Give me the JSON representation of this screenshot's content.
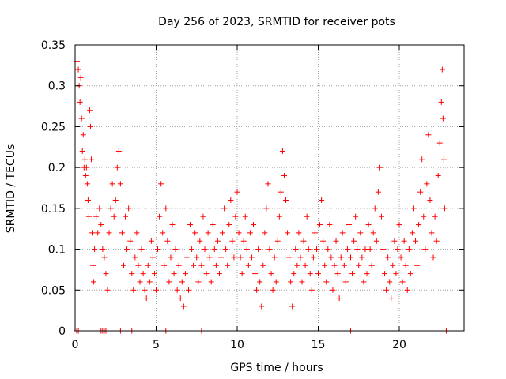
{
  "chart_data": {
    "type": "scatter",
    "title": "Day 256 of 2023, SRMTID for receiver pots",
    "xlabel": "GPS time / hours",
    "ylabel": "SRMTID / TECUs",
    "xlim": [
      0,
      24
    ],
    "ylim": [
      0,
      0.35
    ],
    "xticks": [
      "0",
      "5",
      "10",
      "15",
      "20"
    ],
    "xtick_values": [
      0,
      5,
      10,
      15,
      20
    ],
    "yticks": [
      "0",
      "0.05",
      "0.1",
      "0.15",
      "0.2",
      "0.25",
      "0.3",
      "0.35"
    ],
    "ytick_values": [
      0,
      0.05,
      0.1,
      0.15,
      0.2,
      0.25,
      0.3,
      0.35
    ],
    "grid": true,
    "marker": "+",
    "color": "#ff0000",
    "series": [
      {
        "values": [
          [
            0.12,
            0.33
          ],
          [
            0.2,
            0.32
          ],
          [
            0.25,
            0.3
          ],
          [
            0.3,
            0.28
          ],
          [
            0.35,
            0.31
          ],
          [
            0.4,
            0.26
          ],
          [
            0.45,
            0.22
          ],
          [
            0.5,
            0.24
          ],
          [
            0.55,
            0.2
          ],
          [
            0.6,
            0.21
          ],
          [
            0.65,
            0.19
          ],
          [
            0.7,
            0.2
          ],
          [
            0.75,
            0.18
          ],
          [
            0.8,
            0.16
          ],
          [
            0.85,
            0.14
          ],
          [
            0.9,
            0.27
          ],
          [
            0.95,
            0.25
          ],
          [
            1.0,
            0.21
          ],
          [
            1.05,
            0.12
          ],
          [
            1.1,
            0.08
          ],
          [
            1.15,
            0.06
          ],
          [
            1.2,
            0.1
          ],
          [
            1.3,
            0.14
          ],
          [
            1.4,
            0.12
          ],
          [
            1.5,
            0.15
          ],
          [
            1.6,
            0.13
          ],
          [
            1.7,
            0.1
          ],
          [
            1.8,
            0.09
          ],
          [
            1.9,
            0.07
          ],
          [
            2.0,
            0.05
          ],
          [
            2.1,
            0.12
          ],
          [
            2.2,
            0.15
          ],
          [
            2.3,
            0.18
          ],
          [
            2.4,
            0.14
          ],
          [
            2.5,
            0.16
          ],
          [
            2.6,
            0.2
          ],
          [
            2.7,
            0.22
          ],
          [
            2.8,
            0.18
          ],
          [
            2.9,
            0.12
          ],
          [
            3.0,
            0.08
          ],
          [
            3.1,
            0.14
          ],
          [
            3.2,
            0.1
          ],
          [
            3.3,
            0.15
          ],
          [
            3.4,
            0.11
          ],
          [
            3.5,
            0.07
          ],
          [
            3.6,
            0.05
          ],
          [
            3.7,
            0.09
          ],
          [
            3.8,
            0.12
          ],
          [
            3.9,
            0.08
          ],
          [
            4.0,
            0.06
          ],
          [
            4.1,
            0.1
          ],
          [
            4.2,
            0.07
          ],
          [
            4.3,
            0.05
          ],
          [
            4.4,
            0.04
          ],
          [
            4.5,
            0.08
          ],
          [
            4.6,
            0.06
          ],
          [
            4.7,
            0.11
          ],
          [
            4.8,
            0.09
          ],
          [
            4.9,
            0.07
          ],
          [
            5.0,
            0.05
          ],
          [
            5.1,
            0.1
          ],
          [
            5.2,
            0.14
          ],
          [
            5.3,
            0.18
          ],
          [
            5.4,
            0.12
          ],
          [
            5.5,
            0.08
          ],
          [
            5.6,
            0.15
          ],
          [
            5.7,
            0.11
          ],
          [
            5.8,
            0.06
          ],
          [
            5.9,
            0.09
          ],
          [
            6.0,
            0.13
          ],
          [
            6.1,
            0.07
          ],
          [
            6.2,
            0.1
          ],
          [
            6.3,
            0.05
          ],
          [
            6.4,
            0.08
          ],
          [
            6.5,
            0.04
          ],
          [
            6.6,
            0.06
          ],
          [
            6.7,
            0.03
          ],
          [
            6.8,
            0.07
          ],
          [
            6.9,
            0.09
          ],
          [
            7.0,
            0.05
          ],
          [
            7.1,
            0.13
          ],
          [
            7.2,
            0.1
          ],
          [
            7.3,
            0.08
          ],
          [
            7.4,
            0.12
          ],
          [
            7.5,
            0.09
          ],
          [
            7.6,
            0.06
          ],
          [
            7.7,
            0.11
          ],
          [
            7.8,
            0.08
          ],
          [
            7.9,
            0.14
          ],
          [
            8.0,
            0.1
          ],
          [
            8.1,
            0.07
          ],
          [
            8.2,
            0.12
          ],
          [
            8.3,
            0.09
          ],
          [
            8.4,
            0.06
          ],
          [
            8.5,
            0.13
          ],
          [
            8.6,
            0.1
          ],
          [
            8.7,
            0.08
          ],
          [
            8.8,
            0.11
          ],
          [
            8.9,
            0.07
          ],
          [
            9.0,
            0.09
          ],
          [
            9.1,
            0.12
          ],
          [
            9.2,
            0.15
          ],
          [
            9.3,
            0.1
          ],
          [
            9.4,
            0.08
          ],
          [
            9.5,
            0.13
          ],
          [
            9.6,
            0.16
          ],
          [
            9.7,
            0.11
          ],
          [
            9.8,
            0.09
          ],
          [
            9.9,
            0.14
          ],
          [
            10.0,
            0.17
          ],
          [
            10.1,
            0.12
          ],
          [
            10.2,
            0.09
          ],
          [
            10.3,
            0.07
          ],
          [
            10.4,
            0.11
          ],
          [
            10.5,
            0.14
          ],
          [
            10.6,
            0.1
          ],
          [
            10.7,
            0.08
          ],
          [
            10.8,
            0.12
          ],
          [
            10.9,
            0.09
          ],
          [
            11.0,
            0.13
          ],
          [
            11.1,
            0.07
          ],
          [
            11.2,
            0.05
          ],
          [
            11.3,
            0.1
          ],
          [
            11.4,
            0.06
          ],
          [
            11.5,
            0.03
          ],
          [
            11.6,
            0.08
          ],
          [
            11.7,
            0.12
          ],
          [
            11.8,
            0.15
          ],
          [
            11.9,
            0.18
          ],
          [
            12.0,
            0.1
          ],
          [
            12.1,
            0.07
          ],
          [
            12.2,
            0.05
          ],
          [
            12.3,
            0.09
          ],
          [
            12.4,
            0.06
          ],
          [
            12.5,
            0.11
          ],
          [
            12.6,
            0.14
          ],
          [
            12.7,
            0.17
          ],
          [
            12.8,
            0.22
          ],
          [
            12.9,
            0.19
          ],
          [
            13.0,
            0.16
          ],
          [
            13.1,
            0.12
          ],
          [
            13.2,
            0.09
          ],
          [
            13.3,
            0.06
          ],
          [
            13.4,
            0.03
          ],
          [
            13.5,
            0.07
          ],
          [
            13.6,
            0.1
          ],
          [
            13.7,
            0.08
          ],
          [
            13.8,
            0.12
          ],
          [
            13.9,
            0.09
          ],
          [
            14.0,
            0.06
          ],
          [
            14.1,
            0.11
          ],
          [
            14.2,
            0.08
          ],
          [
            14.3,
            0.14
          ],
          [
            14.4,
            0.1
          ],
          [
            14.5,
            0.07
          ],
          [
            14.6,
            0.05
          ],
          [
            14.7,
            0.09
          ],
          [
            14.8,
            0.12
          ],
          [
            14.9,
            0.1
          ],
          [
            15.0,
            0.07
          ],
          [
            15.1,
            0.13
          ],
          [
            15.2,
            0.16
          ],
          [
            15.3,
            0.11
          ],
          [
            15.4,
            0.08
          ],
          [
            15.5,
            0.06
          ],
          [
            15.6,
            0.1
          ],
          [
            15.7,
            0.13
          ],
          [
            15.8,
            0.09
          ],
          [
            15.9,
            0.05
          ],
          [
            16.0,
            0.08
          ],
          [
            16.1,
            0.11
          ],
          [
            16.2,
            0.07
          ],
          [
            16.3,
            0.04
          ],
          [
            16.4,
            0.09
          ],
          [
            16.5,
            0.12
          ],
          [
            16.6,
            0.08
          ],
          [
            16.7,
            0.06
          ],
          [
            16.8,
            0.1
          ],
          [
            16.9,
            0.13
          ],
          [
            17.0,
            0.09
          ],
          [
            17.1,
            0.07
          ],
          [
            17.2,
            0.11
          ],
          [
            17.3,
            0.14
          ],
          [
            17.4,
            0.1
          ],
          [
            17.5,
            0.08
          ],
          [
            17.6,
            0.12
          ],
          [
            17.7,
            0.09
          ],
          [
            17.8,
            0.06
          ],
          [
            17.9,
            0.1
          ],
          [
            18.0,
            0.07
          ],
          [
            18.1,
            0.13
          ],
          [
            18.2,
            0.1
          ],
          [
            18.3,
            0.08
          ],
          [
            18.4,
            0.12
          ],
          [
            18.5,
            0.15
          ],
          [
            18.6,
            0.11
          ],
          [
            18.7,
            0.17
          ],
          [
            18.8,
            0.2
          ],
          [
            18.9,
            0.14
          ],
          [
            19.0,
            0.1
          ],
          [
            19.1,
            0.07
          ],
          [
            19.2,
            0.05
          ],
          [
            19.3,
            0.09
          ],
          [
            19.4,
            0.06
          ],
          [
            19.5,
            0.04
          ],
          [
            19.6,
            0.08
          ],
          [
            19.7,
            0.11
          ],
          [
            19.8,
            0.07
          ],
          [
            19.9,
            0.1
          ],
          [
            20.0,
            0.13
          ],
          [
            20.1,
            0.09
          ],
          [
            20.2,
            0.06
          ],
          [
            20.3,
            0.11
          ],
          [
            20.4,
            0.08
          ],
          [
            20.5,
            0.05
          ],
          [
            20.6,
            0.1
          ],
          [
            20.7,
            0.07
          ],
          [
            20.8,
            0.12
          ],
          [
            20.9,
            0.15
          ],
          [
            21.0,
            0.11
          ],
          [
            21.1,
            0.08
          ],
          [
            21.2,
            0.13
          ],
          [
            21.3,
            0.17
          ],
          [
            21.4,
            0.21
          ],
          [
            21.5,
            0.14
          ],
          [
            21.6,
            0.1
          ],
          [
            21.7,
            0.18
          ],
          [
            21.8,
            0.24
          ],
          [
            21.9,
            0.16
          ],
          [
            22.0,
            0.12
          ],
          [
            22.1,
            0.09
          ],
          [
            22.2,
            0.14
          ],
          [
            22.3,
            0.11
          ],
          [
            22.4,
            0.19
          ],
          [
            22.5,
            0.23
          ],
          [
            22.6,
            0.28
          ],
          [
            22.65,
            0.32
          ],
          [
            22.7,
            0.26
          ],
          [
            22.75,
            0.21
          ],
          [
            22.8,
            0.15
          ]
        ]
      },
      {
        "values": [
          [
            0.1,
            0.0
          ],
          [
            0.2,
            0.0
          ],
          [
            1.6,
            0.0
          ],
          [
            1.7,
            0.0
          ],
          [
            1.8,
            0.0
          ],
          [
            1.9,
            0.0
          ],
          [
            2.8,
            0.0
          ],
          [
            3.5,
            0.0
          ],
          [
            5.6,
            0.0
          ],
          [
            7.8,
            0.0
          ],
          [
            17.0,
            0.0
          ],
          [
            22.9,
            0.0
          ]
        ]
      }
    ]
  }
}
